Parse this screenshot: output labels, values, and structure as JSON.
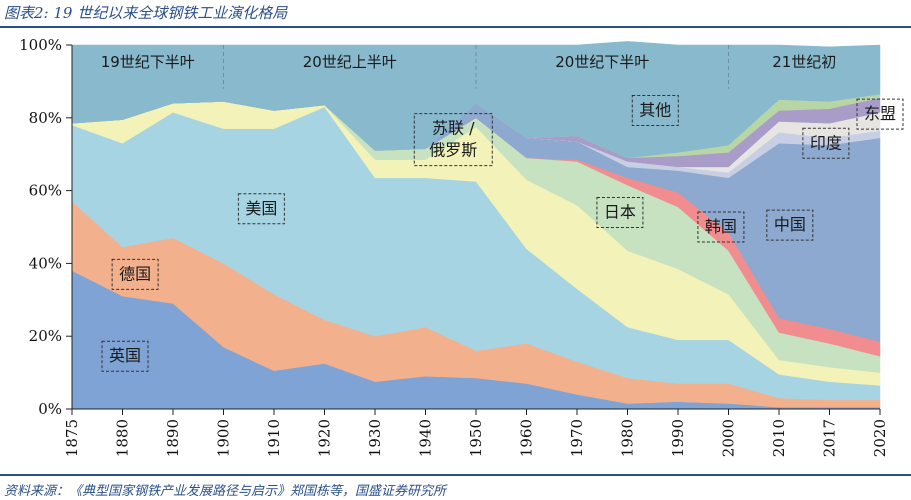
{
  "figure": {
    "title": "图表2:  19 世纪以来全球钢铁工业演化格局",
    "source": "资料来源：《典型国家钢铁产业发展路径与启示》郑国栋等，国盛证券研究所"
  },
  "chart_data": {
    "type": "area",
    "stacked": true,
    "x": [
      1875,
      1880,
      1890,
      1900,
      1910,
      1920,
      1930,
      1940,
      1950,
      1960,
      1970,
      1980,
      1990,
      2000,
      2010,
      2017,
      2020
    ],
    "xticks": [
      "1875",
      "1880",
      "1890",
      "1900",
      "1910",
      "1920",
      "1930",
      "1940",
      "1950",
      "1960",
      "1970",
      "1980",
      "1990",
      "2000",
      "2010",
      "2017",
      "2020"
    ],
    "yticks": [
      "0%",
      "20%",
      "40%",
      "60%",
      "80%",
      "100%"
    ],
    "ylim": [
      0,
      100
    ],
    "series": [
      {
        "name": "英国",
        "color": "#7ea3d4",
        "values": [
          38,
          31,
          29,
          17,
          10.5,
          12.5,
          7.5,
          9,
          8.5,
          7,
          4,
          1.5,
          2,
          1.5,
          0.5,
          0.5,
          0.5
        ]
      },
      {
        "name": "德国",
        "color": "#f3b08c",
        "values": [
          19,
          13.5,
          18,
          23,
          21,
          12,
          12.5,
          13.5,
          7.5,
          11,
          9,
          7,
          5,
          5.5,
          2.5,
          2,
          2
        ]
      },
      {
        "name": "美国",
        "color": "#a6d4e3",
        "values": [
          21,
          28.5,
          34.5,
          37,
          45.5,
          58.5,
          43.5,
          41,
          46.5,
          26,
          20,
          14,
          12,
          12,
          6.5,
          5,
          4
        ]
      },
      {
        "name": "苏联 / 俄罗斯",
        "color": "#f3f2b8",
        "values": [
          0.5,
          6.5,
          2.5,
          7.5,
          5,
          0.5,
          5,
          5,
          15,
          19,
          23,
          21,
          19.5,
          12.5,
          4,
          4,
          3.5
        ]
      },
      {
        "name": "日本",
        "color": "#c6e2c0",
        "values": [
          0,
          0,
          0,
          0,
          0,
          0,
          2.5,
          3,
          2.5,
          6,
          12,
          18,
          17,
          12,
          7.5,
          6.5,
          4.5
        ]
      },
      {
        "name": "韩国",
        "color": "#f18c8f",
        "values": [
          0,
          0,
          0,
          0,
          0,
          0,
          0,
          0,
          0,
          0,
          0.5,
          2,
          4,
          5,
          4,
          4,
          4
        ]
      },
      {
        "name": "中国",
        "color": "#8da9d0",
        "values": [
          0,
          0,
          0,
          0,
          0,
          0,
          0,
          0,
          4,
          5.5,
          5,
          3,
          6,
          15,
          48,
          50.5,
          56
        ]
      },
      {
        "name": "其他",
        "color": "#c8cfe4",
        "values": [
          0,
          0,
          0,
          0,
          0,
          0,
          0,
          0,
          0,
          0,
          0,
          1.5,
          1,
          1.5,
          3,
          2,
          2
        ]
      },
      {
        "name": "印度",
        "color": "#e7e5e1",
        "values": [
          0,
          0,
          0,
          0,
          0,
          0,
          0,
          0,
          0,
          0,
          0,
          0,
          0,
          1.5,
          3,
          4,
          5
        ]
      },
      {
        "name": "东盟",
        "color": "#a99cc8",
        "values": [
          0,
          0,
          0,
          0,
          0,
          0,
          0,
          0,
          0,
          0,
          1.5,
          1,
          3,
          4,
          3,
          4,
          4
        ]
      },
      {
        "name": "other-green",
        "color": "#b8d5a6",
        "values": [
          0,
          0,
          0,
          0,
          0,
          0,
          0,
          0,
          0,
          0,
          0,
          0,
          1,
          2,
          3,
          2,
          1
        ]
      },
      {
        "name": "top",
        "color": "#88b9cc",
        "values": [
          21.5,
          20.5,
          16,
          15.5,
          18,
          16.5,
          29,
          28.5,
          16,
          25.5,
          25,
          32,
          29.5,
          27.5,
          15,
          15,
          13.5
        ]
      }
    ],
    "eras": [
      {
        "label": "19世纪下半叶",
        "from": 1875,
        "to": 1900
      },
      {
        "label": "20世纪上半叶",
        "from": 1900,
        "to": 1950
      },
      {
        "label": "20世纪下半叶",
        "from": 1950,
        "to": 2000
      },
      {
        "label": "21世纪初",
        "from": 2000,
        "to": 2020
      }
    ],
    "annotations": [
      {
        "label": "英国",
        "x": 1880.5,
        "y": 14.5
      },
      {
        "label": "德国",
        "x": 1882.5,
        "y": 37
      },
      {
        "label": "美国",
        "x": 1907.5,
        "y": 55
      },
      {
        "label": "苏联 /",
        "x": 1945.5,
        "y": 74,
        "line2": "俄罗斯"
      },
      {
        "label": "日本",
        "x": 1978.5,
        "y": 54
      },
      {
        "label": "韩国",
        "x": 1998.5,
        "y": 50
      },
      {
        "label": "中国",
        "x": 2011.5,
        "y": 50.5
      },
      {
        "label": "其他",
        "x": 1985.5,
        "y": 82
      },
      {
        "label": "印度",
        "x": 2016.5,
        "y": 73
      },
      {
        "label": "东盟",
        "x": 2020,
        "y": 81
      }
    ]
  }
}
